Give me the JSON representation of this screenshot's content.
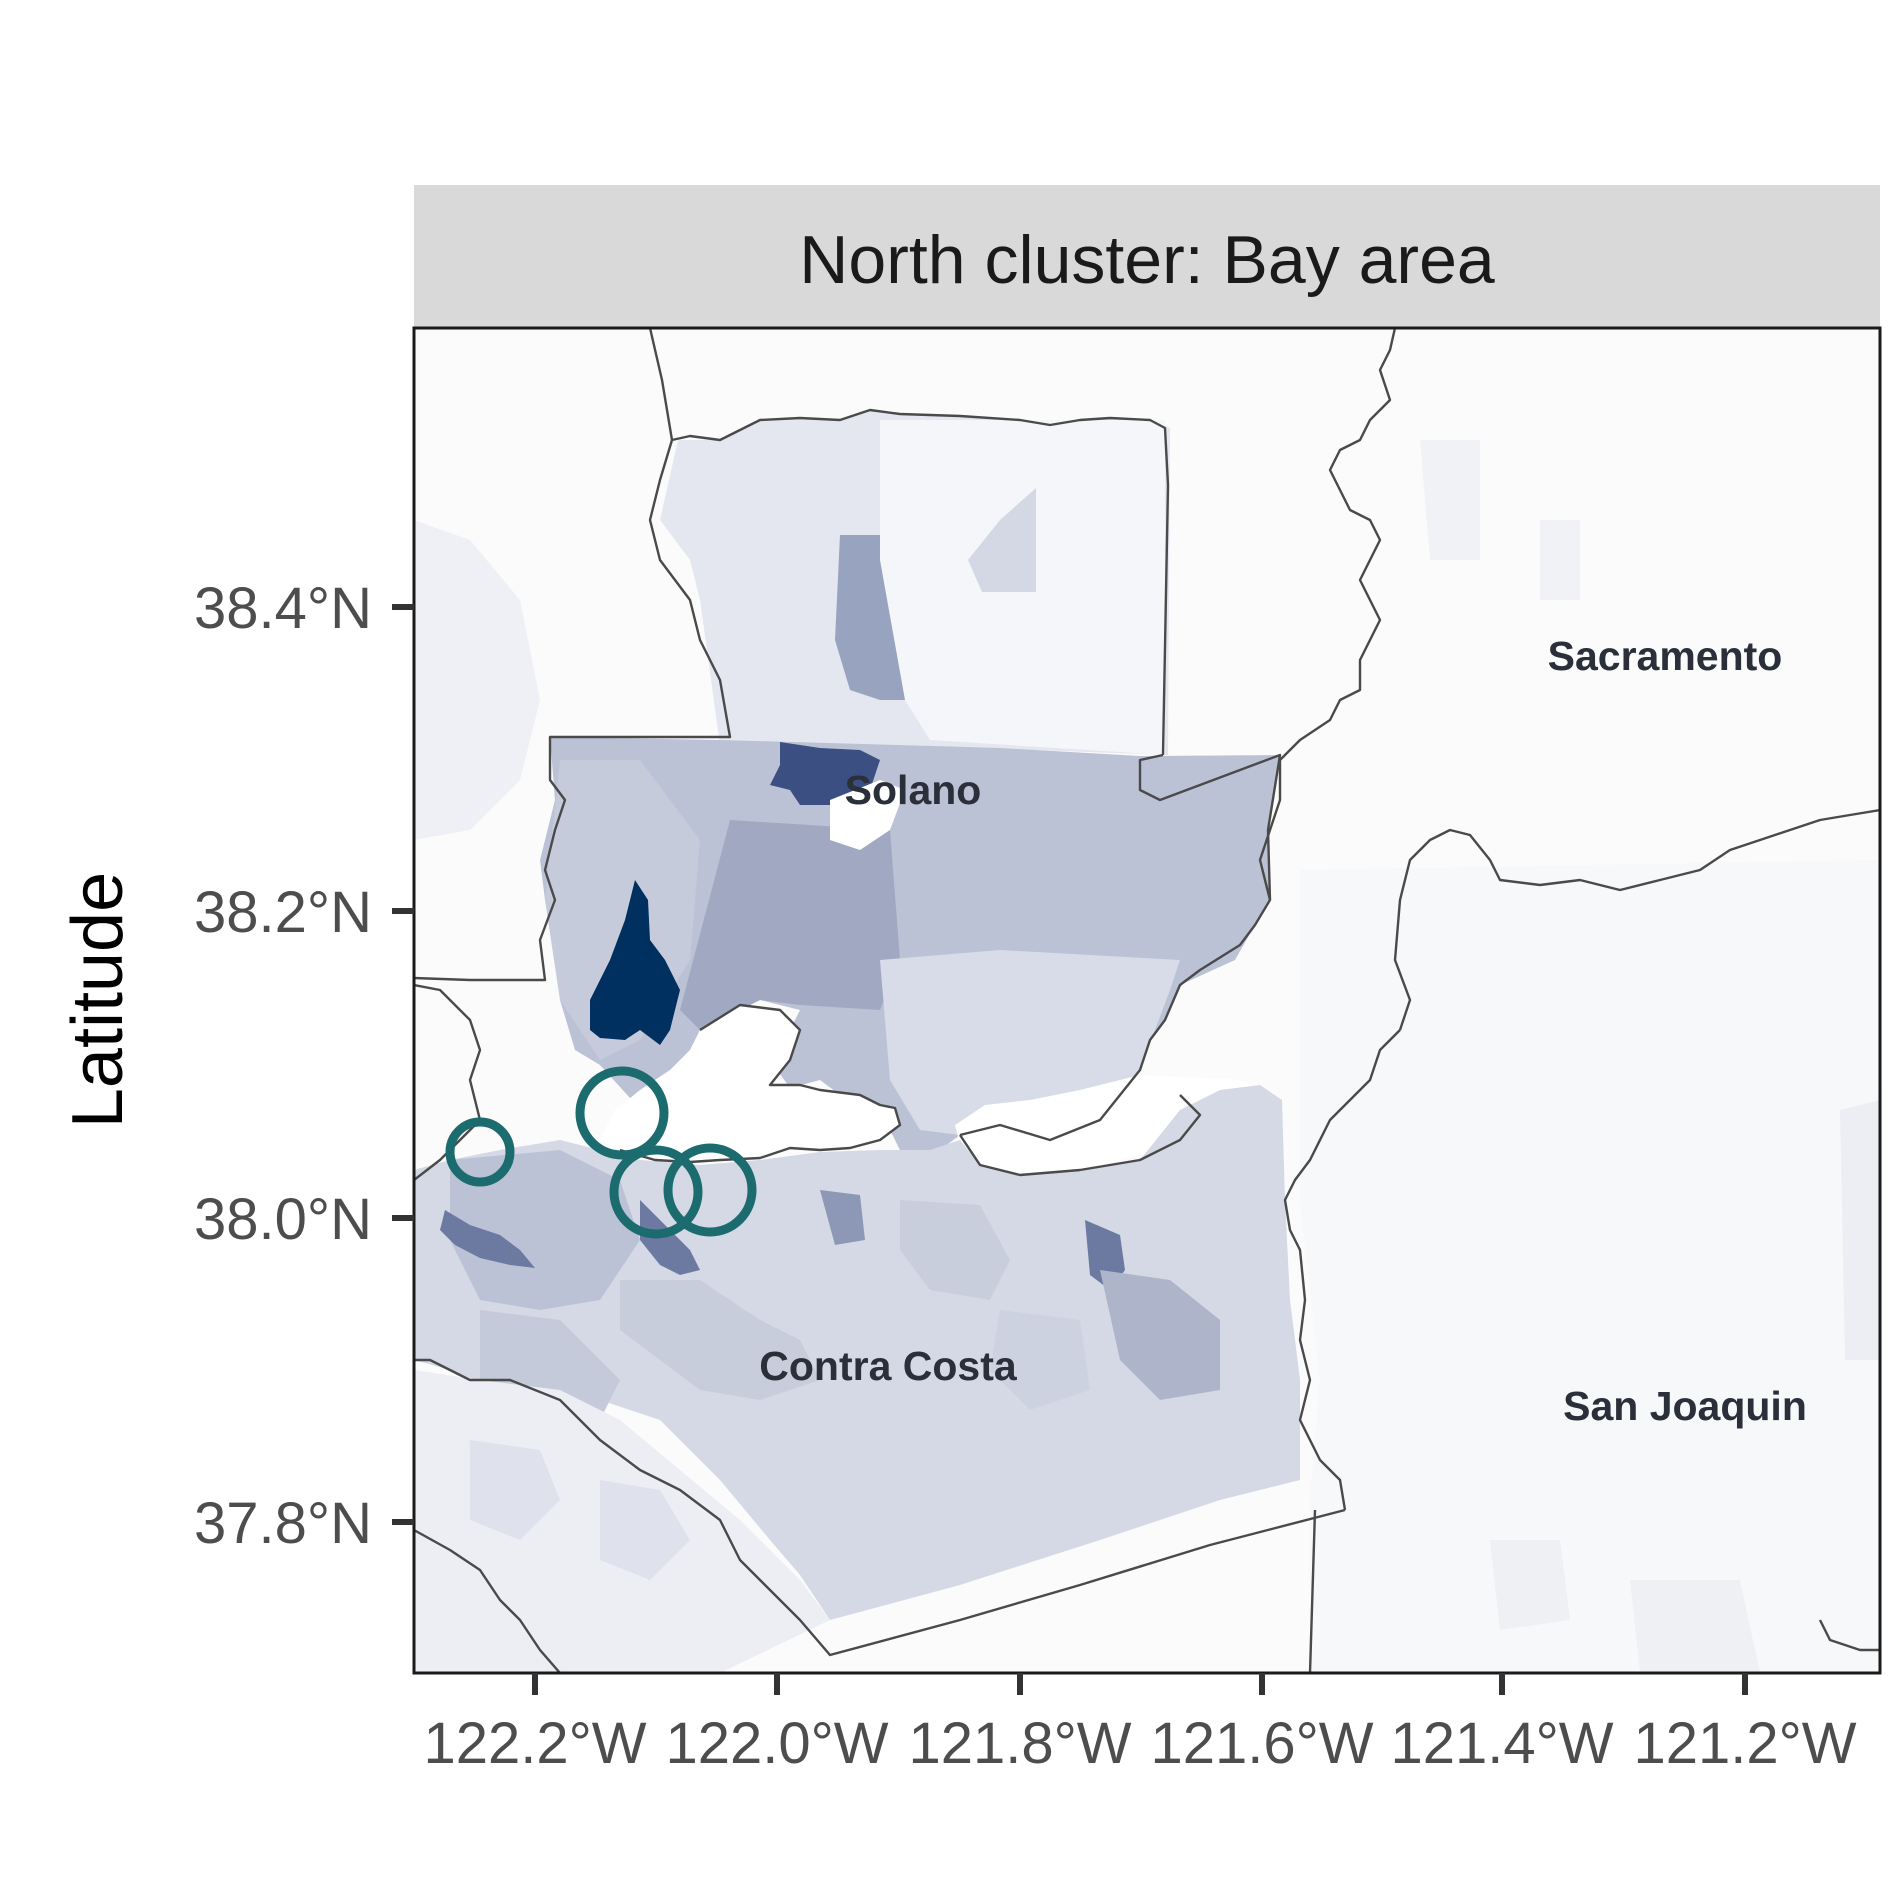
{
  "panel": {
    "strip_title": "North cluster: Bay area"
  },
  "axes": {
    "y_title": "Latitude",
    "x_title": "",
    "x_ticks": [
      "122.2°W",
      "122.0°W",
      "121.8°W",
      "121.6°W",
      "121.4°W",
      "121.2°W"
    ],
    "y_ticks": [
      "38.4°N",
      "38.2°N",
      "38.0°N",
      "37.8°N"
    ]
  },
  "counties": {
    "sacramento": "Sacramento",
    "solano": "Solano",
    "contra_costa": "Contra Costa",
    "san_joaquin": "San Joaquin"
  },
  "chart_data": {
    "type": "choropleth map",
    "title": "North cluster: Bay area",
    "xlabel": "",
    "ylabel": "Latitude",
    "x_ticks_deg": [
      -122.2,
      -122.0,
      -121.8,
      -121.6,
      -121.4,
      -121.2
    ],
    "y_ticks_deg": [
      38.4,
      38.2,
      38.0,
      37.8
    ],
    "xlim": [
      -122.3,
      -121.09
    ],
    "ylim": [
      37.7,
      38.58
    ],
    "county_labels": [
      {
        "name": "Sacramento",
        "lon": -121.33,
        "lat": 38.36
      },
      {
        "name": "Solano",
        "lon": -121.91,
        "lat": 38.28
      },
      {
        "name": "Contra Costa",
        "lon": -121.95,
        "lat": 37.89
      },
      {
        "name": "San Joaquin",
        "lon": -121.32,
        "lat": 37.87
      }
    ],
    "site_markers": [
      {
        "lon": -122.24,
        "lat": 38.04,
        "size": "small"
      },
      {
        "lon": -122.12,
        "lat": 38.07,
        "size": "large"
      },
      {
        "lon": -122.1,
        "lat": 38.02,
        "size": "large"
      },
      {
        "lon": -122.05,
        "lat": 38.02,
        "size": "large"
      }
    ],
    "colors": {
      "fill_low": "#f8f9fb",
      "fill_high": "#00305f",
      "marker": "#1c6b6f",
      "strip": "#d9d9d9"
    },
    "grid": false,
    "legend": "none"
  }
}
